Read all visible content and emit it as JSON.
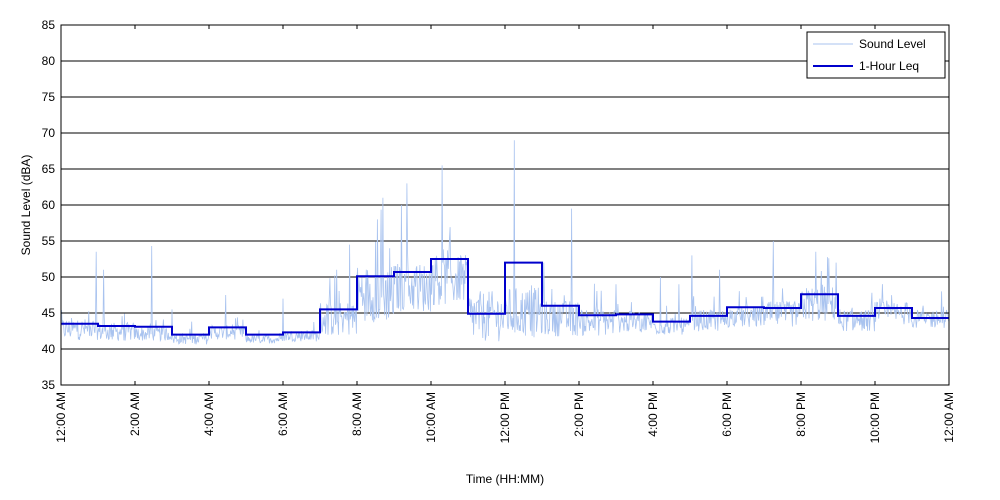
{
  "chart_data": {
    "type": "line",
    "title": "",
    "xlabel": "Time (HH:MM)",
    "ylabel": "Sound Level (dBA)",
    "ylim": [
      35,
      85
    ],
    "xlim": [
      0,
      24
    ],
    "x_unit": "hours since 12:00 AM",
    "yticks": [
      35,
      40,
      45,
      50,
      55,
      60,
      65,
      70,
      75,
      80,
      85
    ],
    "xticks": [
      0,
      2,
      4,
      6,
      8,
      10,
      12,
      14,
      16,
      18,
      20,
      22,
      24
    ],
    "xtick_labels": [
      "12:00 AM",
      "2:00 AM",
      "4:00 AM",
      "6:00 AM",
      "8:00 AM",
      "10:00 AM",
      "12:00 PM",
      "2:00 PM",
      "4:00 PM",
      "6:00 PM",
      "8:00 PM",
      "10:00 PM",
      "12:00 AM"
    ],
    "grid": "horizontal",
    "legend_position": "top-right",
    "series": [
      {
        "name": "Sound Level",
        "color": "#a9c3ef",
        "style": "thin-line",
        "baseline_by_hour": [
          42.3,
          42.0,
          41.8,
          41.2,
          42.0,
          41.2,
          41.6,
          43.5,
          46.5,
          47.5,
          48.5,
          43.5,
          44.0,
          43.5,
          43.2,
          43.3,
          42.8,
          43.5,
          44.0,
          44.3,
          45.5,
          43.5,
          44.5,
          43.8
        ],
        "noise_by_hour": [
          1.5,
          1.3,
          1.0,
          0.8,
          1.0,
          0.6,
          0.8,
          2.5,
          4.0,
          3.5,
          3.5,
          3.5,
          3.5,
          2.5,
          2.0,
          1.5,
          1.2,
          1.5,
          1.5,
          1.8,
          2.5,
          1.5,
          1.6,
          1.3
        ],
        "peaks": [
          {
            "x": 0.95,
            "y": 53.5
          },
          {
            "x": 1.15,
            "y": 51.0
          },
          {
            "x": 2.45,
            "y": 54.3
          },
          {
            "x": 3.0,
            "y": 45.5
          },
          {
            "x": 4.45,
            "y": 47.5
          },
          {
            "x": 6.0,
            "y": 47.0
          },
          {
            "x": 7.45,
            "y": 51.0
          },
          {
            "x": 7.8,
            "y": 54.5
          },
          {
            "x": 8.0,
            "y": 50.0
          },
          {
            "x": 8.55,
            "y": 58.0
          },
          {
            "x": 8.7,
            "y": 61.0
          },
          {
            "x": 9.2,
            "y": 60.0
          },
          {
            "x": 9.35,
            "y": 63.0
          },
          {
            "x": 10.3,
            "y": 65.5
          },
          {
            "x": 10.8,
            "y": 53.0
          },
          {
            "x": 12.25,
            "y": 69.0
          },
          {
            "x": 13.05,
            "y": 52.0
          },
          {
            "x": 13.8,
            "y": 59.5
          },
          {
            "x": 15.0,
            "y": 49.0
          },
          {
            "x": 16.2,
            "y": 50.0
          },
          {
            "x": 16.7,
            "y": 49.0
          },
          {
            "x": 17.05,
            "y": 53.0
          },
          {
            "x": 17.8,
            "y": 51.0
          },
          {
            "x": 19.25,
            "y": 55.0
          },
          {
            "x": 20.4,
            "y": 53.5
          },
          {
            "x": 20.95,
            "y": 52.0
          },
          {
            "x": 22.2,
            "y": 49.0
          },
          {
            "x": 23.8,
            "y": 48.0
          }
        ]
      },
      {
        "name": "1-Hour Leq",
        "color": "#0000cc",
        "style": "step",
        "hours": [
          0,
          1,
          2,
          3,
          4,
          5,
          6,
          7,
          8,
          9,
          10,
          11,
          12,
          13,
          14,
          15,
          16,
          17,
          18,
          19,
          20,
          21,
          22,
          23
        ],
        "values": [
          43.5,
          43.2,
          43.1,
          42.0,
          43.0,
          42.0,
          42.3,
          45.5,
          50.1,
          50.7,
          52.5,
          44.9,
          52.0,
          46.0,
          44.7,
          44.8,
          43.8,
          44.6,
          45.8,
          45.7,
          47.6,
          44.6,
          45.7,
          44.3
        ]
      }
    ],
    "legend": [
      "Sound Level",
      "1-Hour Leq"
    ]
  }
}
